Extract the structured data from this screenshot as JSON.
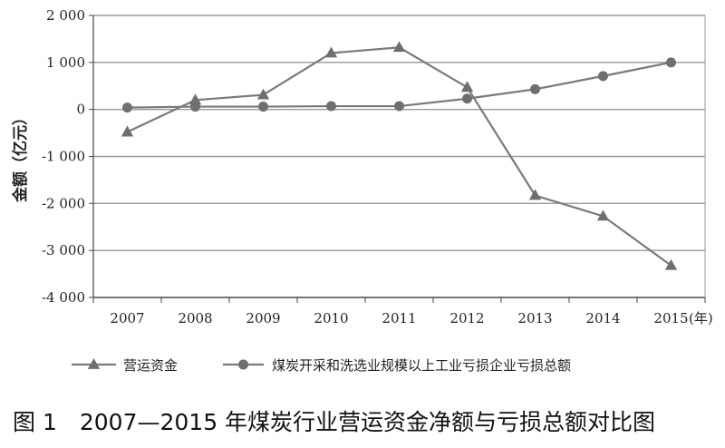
{
  "caption": "图 1　2007—2015 年煤炭行业营运资金净额与亏损总额对比图",
  "chart_data": {
    "type": "line",
    "title": "",
    "ylabel": "金额（亿元）",
    "xlabel": "(年)",
    "x": [
      "2007",
      "2008",
      "2009",
      "2010",
      "2011",
      "2012",
      "2013",
      "2014",
      "2015"
    ],
    "ylim": [
      -4000,
      2000
    ],
    "yticks": [
      2000,
      1000,
      0,
      -1000,
      -2000,
      -3000,
      -4000
    ],
    "ytick_labels": [
      "2 000",
      "1 000",
      "0",
      "-1 000",
      "-2 000",
      "-3 000",
      "-4 000"
    ],
    "grid": true,
    "legend_position": "bottom",
    "series": [
      {
        "name": "营运资金",
        "marker": "triangle",
        "color": "#7a7a7a",
        "values": [
          -480,
          200,
          310,
          1200,
          1320,
          470,
          -1830,
          -2270,
          -3320
        ]
      },
      {
        "name": "煤炭开采和洗选业规模以上工业亏损企业亏损总额",
        "marker": "circle",
        "color": "#7a7a7a",
        "values": [
          40,
          60,
          60,
          70,
          70,
          230,
          430,
          710,
          1000
        ]
      }
    ]
  }
}
